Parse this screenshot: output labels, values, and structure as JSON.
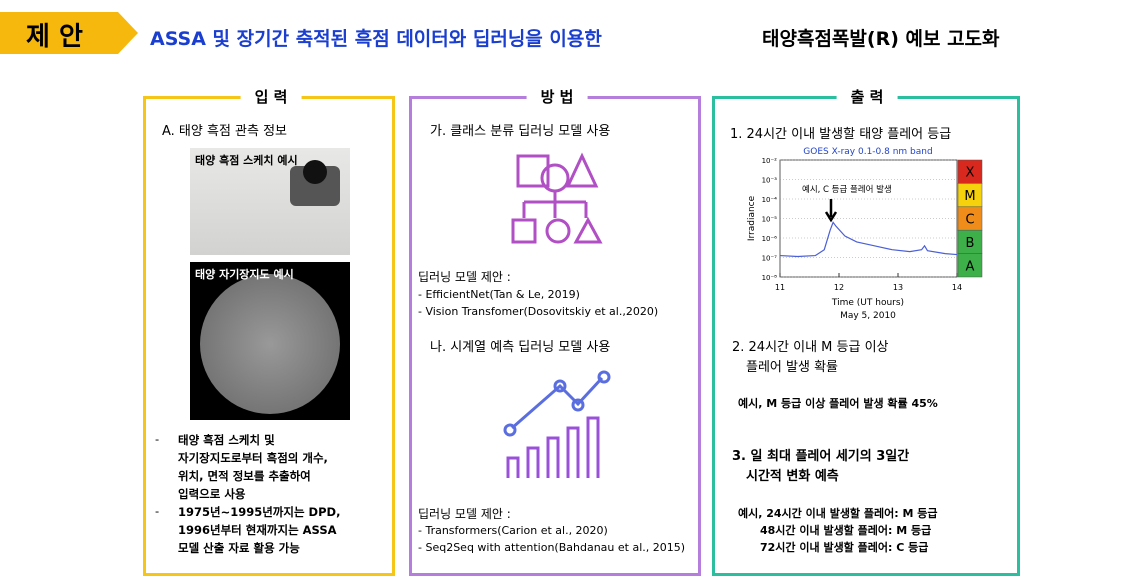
{
  "header": {
    "tag": "제 안",
    "title_blue": "ASSA 및 장기간 축적된 흑점 데이터와 딥러닝을 이용한",
    "title_black": "태양흑점폭발(R) 예보 고도화"
  },
  "input": {
    "label": "입 력",
    "heading": "A. 태양 흑점 관측 정보",
    "image1": "태양 흑점 스케치 예시",
    "image2": "태양 자기장지도 예시",
    "bullets": [
      [
        "태양 흑점 스케치 및",
        "자기장지도로부터 흑점의 개수,",
        "위치, 면적 정보를 추출하여",
        "입력으로 사용"
      ],
      [
        "1975년~1995년까지는 DPD,",
        "1996년부터 현재까지는 ASSA",
        "모델 산출 자료 활용 가능"
      ]
    ]
  },
  "method": {
    "label": "방 법",
    "section1": {
      "heading": "가. 클래스 분류 딥러닝 모델 사용",
      "model_title": "딥러닝 모델 제안 :",
      "models": [
        "- EfficientNet(Tan & Le, 2019)",
        "- Vision Transfomer(Dosovitskiy et al.,2020)"
      ]
    },
    "section2": {
      "heading": "나. 시계열 예측 딥러닝 모델 사용",
      "model_title": "딥러닝 모델 제안 :",
      "models": [
        "- Transformers(Carion et al., 2020)",
        "- Seq2Seq with attention(Bahdanau et al., 2015)"
      ]
    }
  },
  "output": {
    "label": "출 력",
    "item1": "1. 24시간 이내 발생할 태양 플레어 등급",
    "chart": {
      "type": "line",
      "title": "GOES  X-ray   0.1-0.8 nm band",
      "ylabel": "Irradiance",
      "xlabel": "Time (UT hours)",
      "date": "May 5, 2010",
      "annotation": "예시, C 등급 플레어 발생",
      "xlim": [
        11,
        14
      ],
      "xticks": [
        11,
        12,
        13,
        14
      ],
      "ylim": [
        -8,
        -2
      ],
      "yticks": [
        {
          "value": -2,
          "label": "10⁻²"
        },
        {
          "value": -3,
          "label": "10⁻³"
        },
        {
          "value": -4,
          "label": "10⁻⁴"
        },
        {
          "value": -5,
          "label": "10⁻⁵"
        },
        {
          "value": -6,
          "label": "10⁻⁶"
        },
        {
          "value": -7,
          "label": "10⁻⁷"
        },
        {
          "value": -8,
          "label": "10⁻⁸"
        }
      ],
      "series": [
        {
          "color": "#4a5fd6",
          "x": [
            11,
            11.3,
            11.6,
            11.75,
            11.85,
            11.9,
            11.95,
            12.1,
            12.3,
            12.6,
            12.9,
            13.2,
            13.4,
            13.45,
            13.5,
            13.8,
            14
          ],
          "y": [
            -6.9,
            -6.95,
            -6.9,
            -6.6,
            -5.6,
            -5.2,
            -5.4,
            -5.9,
            -6.2,
            -6.4,
            -6.6,
            -6.7,
            -6.6,
            -6.4,
            -6.65,
            -6.8,
            -6.85
          ]
        }
      ],
      "classes": [
        {
          "name": "X",
          "color": "#d9281e"
        },
        {
          "name": "M",
          "color": "#f5d20c"
        },
        {
          "name": "C",
          "color": "#f08c1a"
        },
        {
          "name": "B",
          "color": "#3db04a"
        },
        {
          "name": "A",
          "color": "#3db04a"
        }
      ]
    },
    "item2": [
      "2. 24시간 이내 M 등급 이상",
      "플레어 발생 확률"
    ],
    "example2": "예시, M 등급 이상 플레어 발생 확률 45%",
    "item3": [
      "3. 일 최대 플레어 세기의 3일간",
      "시간적 변화 예측"
    ],
    "example3": [
      "예시, 24시간 이내 발생할 플레어: M 등급",
      "48시간 이내 발생할 플레어: M 등급",
      "72시간 이내 발생할 플레어: C 등급"
    ]
  }
}
